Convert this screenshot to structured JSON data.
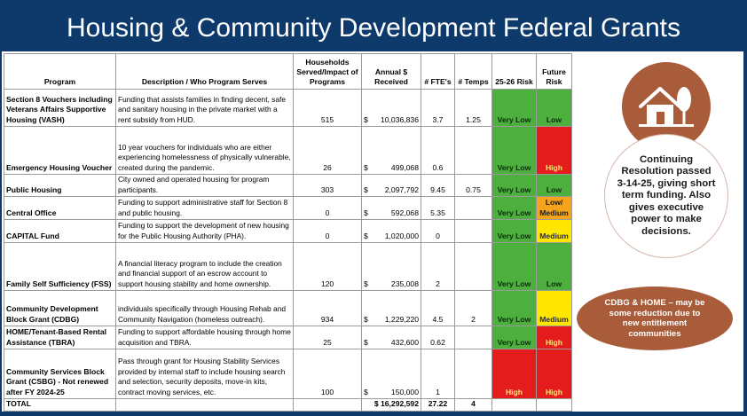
{
  "title": "Housing & Community Development Federal Grants",
  "table": {
    "headers": {
      "program": "Program",
      "description": "Description / Who Program Serves",
      "households": "Households Served/Impact of Programs",
      "annual": "Annual $ Received",
      "fte": "# FTE's",
      "temps": "# Temps",
      "risk2526": "25-26 Risk",
      "future": "Future Risk"
    },
    "rows": [
      {
        "program": "Section 8 Vouchers including Veterans Affairs Supportive Housing (VASH)",
        "description": "Funding that assists families in finding decent, safe and sanitary housing in the private market with a rent subsidy from HUD.",
        "households": "515",
        "currency": "$",
        "amount": "10,036,836",
        "fte": "3.7",
        "temps": "1.25",
        "risk": "Very Low",
        "future": "Low"
      },
      {
        "program": "Emergency Housing Voucher",
        "description": "10 year vouchers for individuals who are either experiencing homelessness of physically vulnerable, created during the pandemic.",
        "households": "26",
        "currency": "$",
        "amount": "499,068",
        "fte": "0.6",
        "temps": "",
        "risk": "Very Low",
        "future": "High"
      },
      {
        "program": "Public Housing",
        "description": "City owned and operated housing for program participants.",
        "households": "303",
        "currency": "$",
        "amount": "2,097,792",
        "fte": "9.45",
        "temps": "0.75",
        "risk": "Very Low",
        "future": "Low"
      },
      {
        "program": "Central Office",
        "description": "Funding to support administrative staff for Section 8 and public housing.",
        "households": "0",
        "currency": "$",
        "amount": "592,068",
        "fte": "5.35",
        "temps": "",
        "risk": "Very Low",
        "future": "Low/ Medium"
      },
      {
        "program": "CAPITAL Fund",
        "description": "Funding to support the development of new housing for the Public Housing Authority (PHA).",
        "households": "0",
        "currency": "$",
        "amount": "1,020,000",
        "fte": "0",
        "temps": "",
        "risk": "Very Low",
        "future": "Medium"
      },
      {
        "program": "Family Self Sufficiency (FSS)",
        "description": "A financial literacy program to include the creation and financial support of an escrow account to support housing stability and home ownership.",
        "households": "120",
        "currency": "$",
        "amount": "235,008",
        "fte": "2",
        "temps": "",
        "risk": "Very Low",
        "future": "Low"
      },
      {
        "program": "Community Development Block Grant (CDBG)",
        "description": "individuals specifically through Housing Rehab and Community Navigation (homeless outreach).",
        "households": "934",
        "currency": "$",
        "amount": "1,229,220",
        "fte": "4.5",
        "temps": "2",
        "risk": "Very Low",
        "future": "Medium"
      },
      {
        "program": "HOME/Tenant-Based Rental Assistance (TBRA)",
        "description": "Funding to support affordable housing through home acquisition and TBRA.",
        "households": "25",
        "currency": "$",
        "amount": "432,600",
        "fte": "0.62",
        "temps": "",
        "risk": "Very Low",
        "future": "High"
      },
      {
        "program": "Community Services Block Grant (CSBG) - Not renewed after FY 2024-25",
        "description": "Pass through grant for Housing Stability Services provided by internal staff to include housing search and selection, security deposits, move-in kits, contract moving services, etc.",
        "households": "100",
        "currency": "$",
        "amount": "150,000",
        "fte": "1",
        "temps": "",
        "risk": "High",
        "future": "High"
      }
    ],
    "total": {
      "label": "TOTAL",
      "amount": "$ 16,292,592",
      "fte": "27.22",
      "temps": "4"
    }
  },
  "colors": {
    "background": "#0e3a6b",
    "accent": "#a85c3a",
    "green": "#4caf3e",
    "red": "#e51c1c",
    "yellow": "#ffe600",
    "orange": "#f5a31a"
  },
  "sidebar": {
    "icon": "house-tree-icon",
    "continuing_resolution": "Continuing Resolution passed 3-14-25, giving short term funding. Also gives executive power to make decisions.",
    "cdbg_note": "CDBG & HOME – may be some reduction due to new entitlement communities"
  }
}
